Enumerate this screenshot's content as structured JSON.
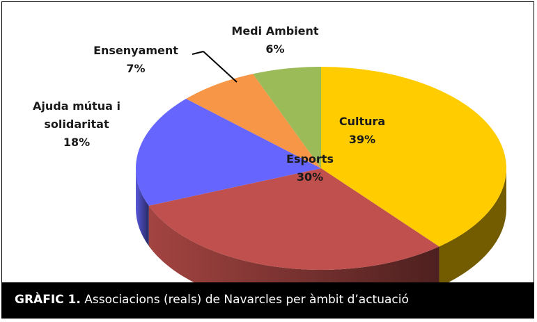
{
  "chart_data": {
    "type": "pie3d",
    "categories": [
      "Cultura",
      "Esports",
      "Ajuda mútua i solidaritat",
      "Ensenyament",
      "Medi Ambient"
    ],
    "values": [
      39,
      30,
      18,
      7,
      6
    ],
    "value_labels": [
      "39%",
      "30%",
      "18%",
      "7%",
      "6%"
    ],
    "colors": [
      "#ffcc00",
      "#c0504d",
      "#6666ff",
      "#f79646",
      "#9bbb59"
    ],
    "caption": {
      "label": "GRÀFIC 1.",
      "text": "Associacions (reals) de Navarcles per àmbit d’actuació"
    }
  }
}
